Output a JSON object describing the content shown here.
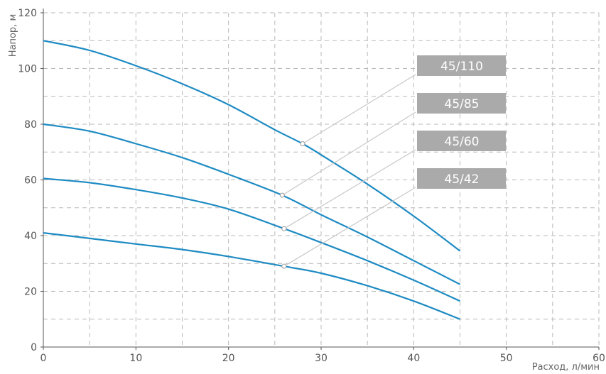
{
  "chart_data": {
    "type": "line",
    "xlabel": "Расход, л/мин",
    "ylabel": "Напор, м",
    "xlim": [
      0,
      60
    ],
    "ylim": [
      0,
      120
    ],
    "x_ticks": [
      "0",
      "10",
      "20",
      "30",
      "40",
      "50",
      "60"
    ],
    "y_ticks": [
      "0",
      "20",
      "40",
      "60",
      "80",
      "100",
      "120"
    ],
    "grid": true,
    "line_color": "#1e8bc3",
    "label_box_color": "#aaaaaa",
    "series": [
      {
        "name": "45/110",
        "x": [
          0,
          5,
          10,
          15,
          20,
          25,
          28,
          30,
          35,
          40,
          45
        ],
        "y": [
          110,
          106.5,
          101,
          94.5,
          87,
          78,
          73,
          69,
          58.5,
          47,
          34.5
        ],
        "marker": [
          28,
          73
        ]
      },
      {
        "name": "45/85",
        "x": [
          0,
          5,
          10,
          15,
          20,
          25.8,
          30,
          35,
          40,
          45
        ],
        "y": [
          80,
          77.5,
          73,
          68,
          62,
          54.5,
          47.5,
          39.5,
          31,
          22.5
        ],
        "marker": [
          25.8,
          54.5
        ]
      },
      {
        "name": "45/60",
        "x": [
          0,
          5,
          10,
          15,
          20,
          26,
          30,
          35,
          40,
          45
        ],
        "y": [
          60.5,
          59,
          56.5,
          53.5,
          49.5,
          42.5,
          37.5,
          31,
          24,
          16.5
        ],
        "marker": [
          26,
          42.5
        ]
      },
      {
        "name": "45/42",
        "x": [
          0,
          5,
          10,
          15,
          20,
          26,
          30,
          35,
          40,
          45
        ],
        "y": [
          41,
          39,
          37,
          35,
          32.5,
          29,
          26.5,
          22,
          16.5,
          10
        ],
        "marker": [
          26,
          29
        ]
      }
    ]
  }
}
